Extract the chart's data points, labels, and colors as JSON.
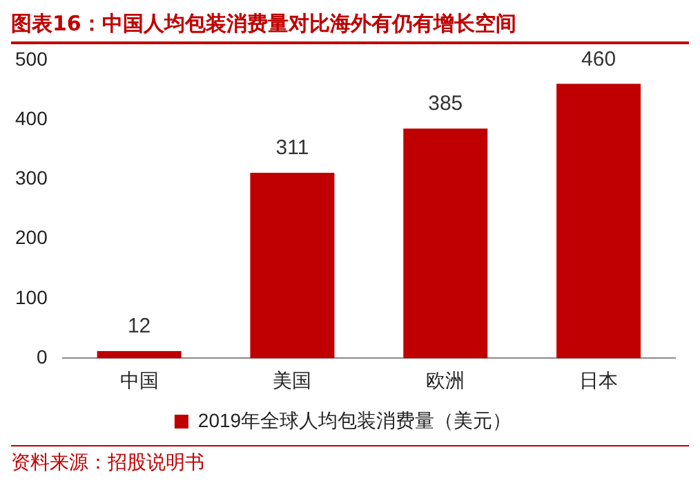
{
  "chart_data": {
    "type": "bar",
    "title": "图表16：中国人均包装消费量对比海外有仍有增长空间",
    "categories": [
      "中国",
      "美国",
      "欧洲",
      "日本"
    ],
    "series": [
      {
        "name": "2019年全球人均包装消费量（美元）",
        "color": "#c00000",
        "values": [
          12,
          311,
          385,
          460
        ]
      }
    ],
    "ylim": [
      0,
      500
    ],
    "yticks": [
      0,
      100,
      200,
      300,
      400,
      500
    ],
    "grid": false,
    "legend": "bottom",
    "data_labels": true,
    "annotations": [
      "资料来源：招股说明书"
    ]
  }
}
